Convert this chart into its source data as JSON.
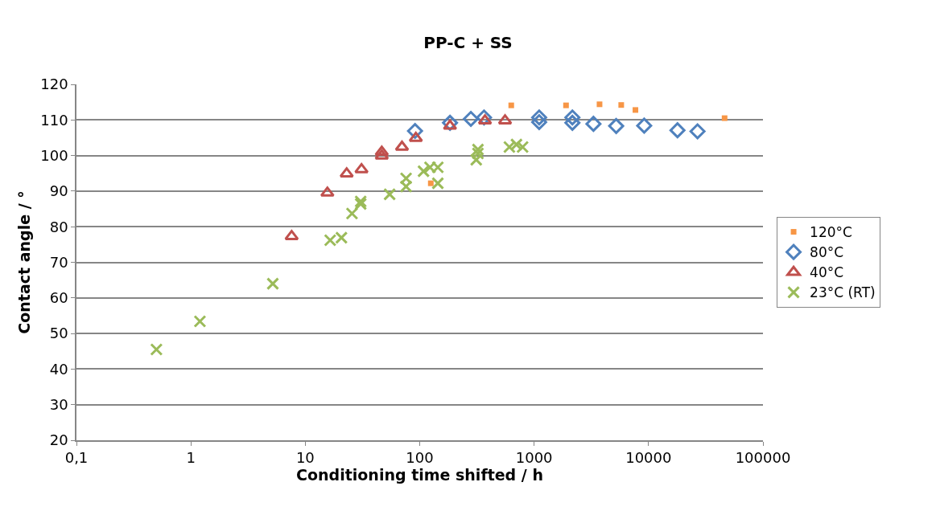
{
  "chart_data": {
    "type": "scatter",
    "title": "PP-C + SS",
    "xlabel": "Conditioning time shifted / h",
    "ylabel": "Contact angle / °",
    "log": "x",
    "grid": "y",
    "legend": "right",
    "xlim": [
      0.1,
      100000
    ],
    "xticks": [
      {
        "value": 0.1,
        "label": "0,1"
      },
      1,
      10,
      100,
      1000,
      10000,
      100000
    ],
    "ylim": [
      20,
      120
    ],
    "yticks": [
      20,
      30,
      40,
      50,
      60,
      70,
      80,
      90,
      100,
      110,
      120
    ],
    "series": [
      {
        "name": "120°C",
        "color": "#f79646",
        "marker": "square",
        "x": [
          631,
          1900,
          3730,
          5770,
          7680,
          46200,
          125
        ],
        "values": [
          114.1,
          114.1,
          114.4,
          114.2,
          112.8,
          110.5,
          92.2
        ]
      },
      {
        "name": "80°C",
        "color": "#4f81bd",
        "marker": "diamond",
        "x": [
          91,
          184,
          280,
          365,
          1107,
          1107,
          2160,
          2160,
          3300,
          5210,
          9160,
          17900,
          26800
        ],
        "values": [
          106.9,
          109.2,
          110.3,
          110.7,
          110.7,
          109.4,
          110.7,
          109.2,
          108.9,
          108.3,
          108.4,
          107.1,
          106.8
        ]
      },
      {
        "name": "40°C",
        "color": "#c0504d",
        "marker": "triangle",
        "x": [
          7.6,
          15.6,
          23,
          31,
          46.6,
          46.6,
          70,
          92.5,
          184,
          372,
          557
        ],
        "values": [
          77.3,
          89.5,
          94.9,
          96.1,
          101.0,
          99.9,
          102.4,
          104.9,
          108.3,
          109.8,
          109.8
        ]
      },
      {
        "name": "23°C (RT)",
        "color": "#9bbb59",
        "marker": "cross",
        "x": [
          0.5,
          1.2,
          5.2,
          16.5,
          20.7,
          25.6,
          30.5,
          30.5,
          54.6,
          76,
          76,
          108,
          123,
          144,
          144,
          312,
          323,
          323,
          608,
          701,
          793
        ],
        "values": [
          45.5,
          53.4,
          64.0,
          76.2,
          76.9,
          83.7,
          86.4,
          87.1,
          89.1,
          91.3,
          93.6,
          95.6,
          96.7,
          96.7,
          92.2,
          98.8,
          100.6,
          101.7,
          102.4,
          103.1,
          102.4
        ]
      }
    ]
  }
}
